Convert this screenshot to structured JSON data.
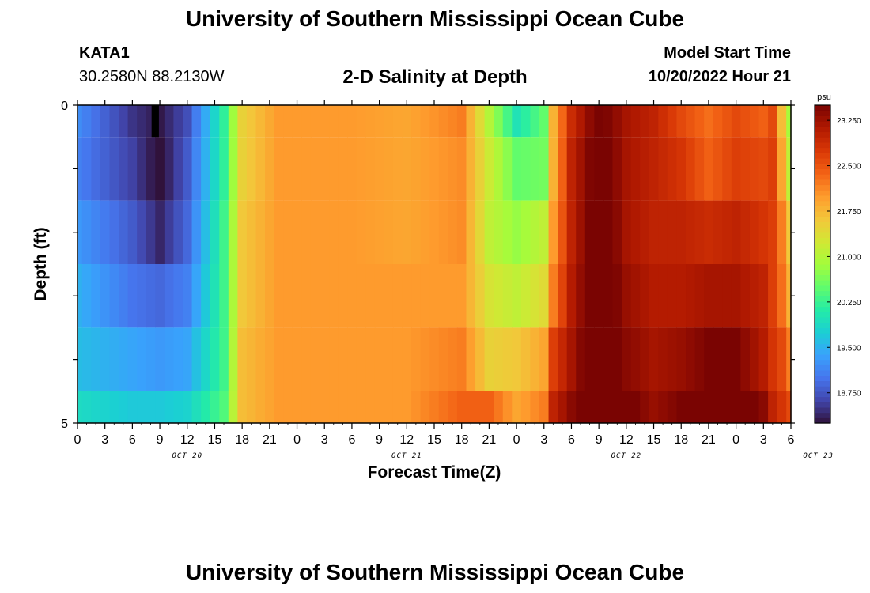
{
  "header": {
    "title": "University of Southern Mississippi Ocean Cube",
    "station": "KATA1",
    "coordinates": "30.2580N  88.2130W",
    "model_start_label": "Model Start Time",
    "model_start_value": "10/20/2022 Hour 21"
  },
  "footer": {
    "title": "University of Southern Mississippi Ocean Cube"
  },
  "chart_data": {
    "type": "heatmap",
    "title": "2-D Salinity at Depth",
    "xlabel": "Forecast Time(Z)",
    "ylabel": "Depth (ft)",
    "ylim": [
      0,
      5
    ],
    "y_ticks": [
      "0",
      "5"
    ],
    "x_tick_labels": [
      "0",
      "3",
      "6",
      "9",
      "12",
      "15",
      "18",
      "21",
      "0",
      "3",
      "6",
      "9",
      "12",
      "15",
      "18",
      "21",
      "0",
      "3",
      "6",
      "9",
      "12",
      "15",
      "18",
      "21",
      "0",
      "3",
      "6"
    ],
    "date_labels": [
      {
        "label": "OCT 20",
        "hour_offset": 12
      },
      {
        "label": "OCT 21",
        "hour_offset": 36
      },
      {
        "label": "OCT 22",
        "hour_offset": 60
      },
      {
        "label": "OCT 23",
        "hour_offset": 81
      }
    ],
    "hours": 78,
    "depth_levels": [
      0,
      1,
      2,
      3,
      4,
      5
    ],
    "time_knots_hours": [
      0,
      6,
      9,
      12,
      16,
      18,
      22,
      30,
      36,
      42,
      45,
      48,
      51,
      52,
      54,
      57,
      60,
      63,
      66,
      69,
      72,
      75,
      76,
      77,
      78
    ],
    "salinity_knots_psu": [
      [
        19.2,
        18.5,
        18.3,
        18.7,
        20.2,
        21.5,
        22.0,
        22.0,
        21.9,
        22.2,
        21.0,
        20.0,
        20.5,
        21.8,
        22.9,
        23.6,
        23.2,
        23.0,
        22.6,
        22.3,
        22.6,
        22.4,
        22.6,
        21.7,
        20.9
      ],
      [
        19.1,
        18.6,
        18.2,
        18.8,
        20.2,
        21.5,
        22.0,
        22.0,
        21.9,
        22.1,
        21.2,
        20.5,
        20.6,
        21.8,
        23.0,
        23.7,
        23.2,
        23.0,
        22.8,
        22.4,
        22.7,
        22.6,
        22.7,
        21.9,
        21.1
      ],
      [
        19.3,
        18.8,
        18.4,
        18.9,
        20.3,
        21.6,
        22.0,
        22.0,
        21.9,
        22.1,
        21.1,
        20.8,
        21.1,
        22.0,
        23.0,
        23.8,
        23.2,
        23.0,
        23.0,
        22.9,
        23.0,
        22.8,
        22.7,
        22.2,
        21.6
      ],
      [
        19.5,
        19.0,
        18.9,
        19.1,
        20.3,
        21.6,
        22.0,
        22.0,
        22.0,
        22.0,
        21.3,
        21.1,
        21.4,
        22.2,
        23.1,
        23.8,
        23.3,
        23.1,
        23.1,
        23.2,
        23.2,
        23.0,
        22.7,
        22.3,
        21.8
      ],
      [
        19.6,
        19.4,
        19.3,
        19.4,
        20.3,
        21.7,
        22.0,
        22.0,
        22.0,
        22.2,
        21.5,
        21.6,
        21.9,
        22.7,
        23.2,
        23.9,
        23.4,
        23.2,
        23.3,
        23.5,
        23.5,
        23.1,
        22.8,
        22.6,
        22.2
      ],
      [
        19.9,
        19.7,
        19.7,
        19.8,
        20.4,
        21.7,
        22.0,
        22.0,
        22.0,
        22.4,
        22.4,
        21.9,
        22.2,
        23.0,
        23.4,
        24.0,
        23.6,
        23.3,
        23.5,
        23.9,
        24.0,
        23.4,
        23.0,
        22.8,
        22.6
      ]
    ],
    "anomaly": {
      "hour": 8.5,
      "depth": 0,
      "value": "missing"
    },
    "colorbar": {
      "unit": "psu",
      "min": 18.25,
      "max": 23.5,
      "ticks": [
        "18.750",
        "19.500",
        "20.250",
        "21.000",
        "21.750",
        "22.500",
        "23.250"
      ],
      "tick_values": [
        18.75,
        19.5,
        20.25,
        21.0,
        21.75,
        22.5,
        23.25
      ],
      "palette": [
        "#30123b",
        "#4145ab",
        "#4675ed",
        "#39a2fc",
        "#1bcfd4",
        "#24eca6",
        "#61fc6c",
        "#a4fc3b",
        "#d1e834",
        "#f3c63a",
        "#fe9b2d",
        "#f36315",
        "#d93806",
        "#b11901",
        "#7a0402"
      ]
    }
  }
}
